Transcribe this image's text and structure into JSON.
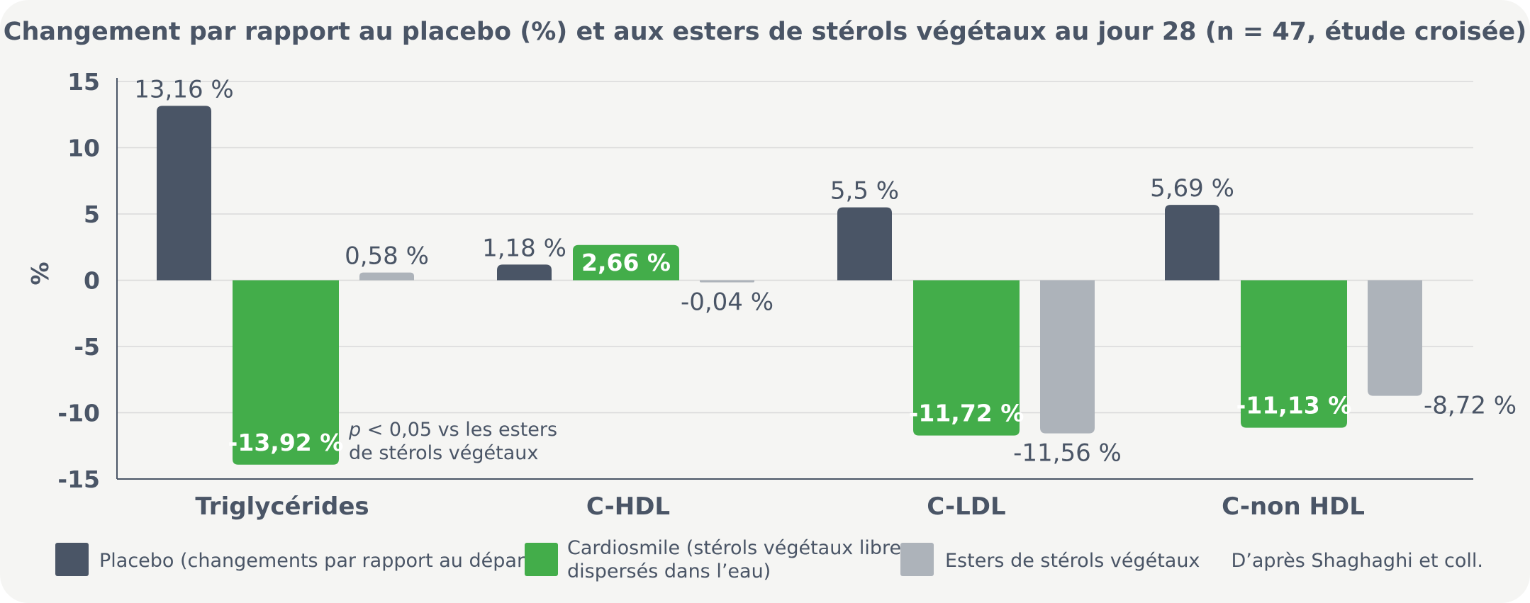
{
  "chart_data": {
    "type": "bar",
    "title": "Changement par rapport au placebo (%) et aux esters de stérols végétaux au jour 28 (n = 47, étude croisée)",
    "xlabel": "",
    "ylabel": "%",
    "ylim": [
      -15,
      15
    ],
    "yticks": [
      15,
      10,
      5,
      0,
      -5,
      -10,
      -15
    ],
    "grid": true,
    "legend_position": "bottom",
    "categories": [
      "Triglycérides",
      "C-HDL",
      "C-LDL",
      "C-non HDL"
    ],
    "series": [
      {
        "name": "Placebo (changements par rapport au départ)",
        "color": "#4a5566",
        "values": [
          13.16,
          1.18,
          5.5,
          5.69
        ],
        "labels": [
          "13,16 %",
          "1,18 %",
          "5,5 %",
          "5,69 %"
        ]
      },
      {
        "name_lines": [
          "Cardiosmile (stérols végétaux libres",
          "dispersés dans l’eau)"
        ],
        "color": "#43ad4a",
        "values": [
          -13.92,
          2.66,
          -11.72,
          -11.13
        ],
        "labels": [
          "-13,92 %",
          "2,66 %",
          "-11,72 %",
          "-11,13 %"
        ]
      },
      {
        "name": "Esters de stérols végétaux",
        "color": "#adb3ba",
        "values": [
          0.58,
          -0.04,
          -11.56,
          -8.72
        ],
        "labels": [
          "0,58 %",
          "-0,04 %",
          "-11,56 %",
          "-8,72 %"
        ]
      }
    ],
    "annotations": {
      "significance_symbol": "p",
      "significance_rest": " < 0,05 vs les esters",
      "significance_line2": "de stérols végétaux"
    },
    "source": "D’après Shaghaghi et coll."
  }
}
